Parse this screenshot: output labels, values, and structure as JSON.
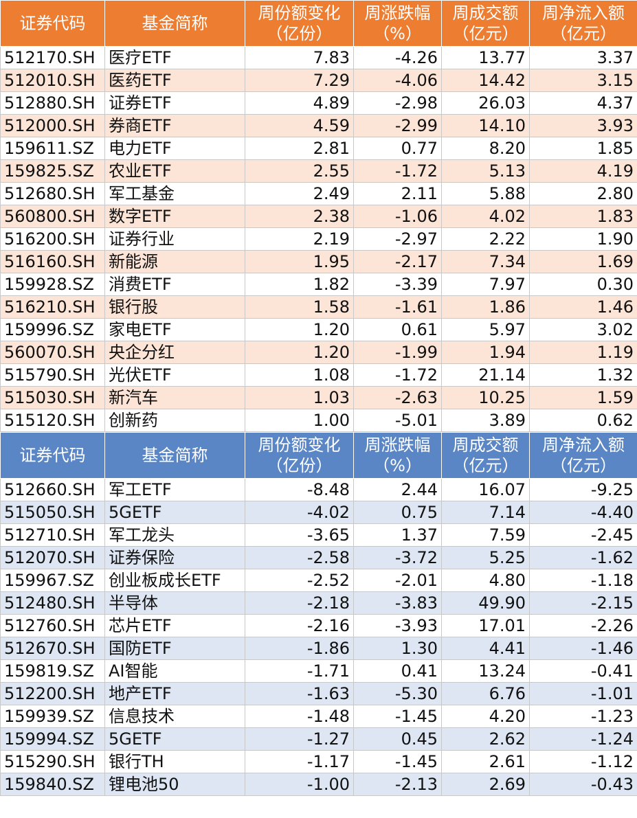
{
  "columns": {
    "code": "证券代码",
    "name": "基金简称",
    "share_change": [
      "周份额变化",
      "（亿份）"
    ],
    "pct_change": [
      "周涨跌幅",
      "（%）"
    ],
    "turnover": [
      "周成交额",
      "（亿元）"
    ],
    "net_inflow": [
      "周净流入额",
      "（亿元）"
    ]
  },
  "colors": {
    "inflow_header": "#ed7d31",
    "inflow_stripe": "#fce4d6",
    "outflow_header": "#5b86c5",
    "outflow_stripe": "#dde6f2"
  },
  "inflow_rows": [
    [
      "512170.SH",
      "医疗ETF",
      "7.83",
      "-4.26",
      "13.77",
      "3.37"
    ],
    [
      "512010.SH",
      "医药ETF",
      "7.29",
      "-4.06",
      "14.42",
      "3.15"
    ],
    [
      "512880.SH",
      "证券ETF",
      "4.89",
      "-2.98",
      "26.03",
      "4.37"
    ],
    [
      "512000.SH",
      "券商ETF",
      "4.59",
      "-2.99",
      "14.10",
      "3.93"
    ],
    [
      "159611.SZ",
      "电力ETF",
      "2.81",
      "0.77",
      "8.20",
      "1.85"
    ],
    [
      "159825.SZ",
      "农业ETF",
      "2.55",
      "-1.72",
      "5.13",
      "4.19"
    ],
    [
      "512680.SH",
      "军工基金",
      "2.49",
      "2.11",
      "5.88",
      "2.80"
    ],
    [
      "560800.SH",
      "数字ETF",
      "2.38",
      "-1.06",
      "4.02",
      "1.83"
    ],
    [
      "516200.SH",
      "证券行业",
      "2.19",
      "-2.97",
      "2.22",
      "1.90"
    ],
    [
      "516160.SH",
      "新能源",
      "1.95",
      "-2.17",
      "7.34",
      "1.69"
    ],
    [
      "159928.SZ",
      "消费ETF",
      "1.82",
      "-3.39",
      "7.97",
      "0.30"
    ],
    [
      "516210.SH",
      "银行股",
      "1.58",
      "-1.61",
      "1.86",
      "1.46"
    ],
    [
      "159996.SZ",
      "家电ETF",
      "1.20",
      "0.61",
      "5.97",
      "3.02"
    ],
    [
      "560070.SH",
      "央企分红",
      "1.20",
      "-1.99",
      "1.94",
      "1.19"
    ],
    [
      "515790.SH",
      "光伏ETF",
      "1.08",
      "-1.72",
      "21.14",
      "1.32"
    ],
    [
      "515030.SH",
      "新汽车",
      "1.03",
      "-2.63",
      "10.25",
      "1.59"
    ],
    [
      "515120.SH",
      "创新药",
      "1.00",
      "-5.01",
      "3.89",
      "0.62"
    ]
  ],
  "outflow_rows": [
    [
      "512660.SH",
      "军工ETF",
      "-8.48",
      "2.44",
      "16.07",
      "-9.25"
    ],
    [
      "515050.SH",
      "5GETF",
      "-4.02",
      "0.75",
      "7.14",
      "-4.40"
    ],
    [
      "512710.SH",
      "军工龙头",
      "-3.65",
      "1.37",
      "7.59",
      "-2.45"
    ],
    [
      "512070.SH",
      "证券保险",
      "-2.58",
      "-3.72",
      "5.25",
      "-1.62"
    ],
    [
      "159967.SZ",
      "创业板成长ETF",
      "-2.52",
      "-2.01",
      "4.80",
      "-1.18"
    ],
    [
      "512480.SH",
      "半导体",
      "-2.18",
      "-3.83",
      "49.90",
      "-2.15"
    ],
    [
      "512760.SH",
      "芯片ETF",
      "-2.16",
      "-3.93",
      "17.01",
      "-2.26"
    ],
    [
      "512670.SH",
      "国防ETF",
      "-1.86",
      "1.30",
      "4.41",
      "-1.46"
    ],
    [
      "159819.SZ",
      "AI智能",
      "-1.71",
      "0.41",
      "13.24",
      "-0.41"
    ],
    [
      "512200.SH",
      "地产ETF",
      "-1.63",
      "-5.30",
      "6.76",
      "-1.01"
    ],
    [
      "159939.SZ",
      "信息技术",
      "-1.48",
      "-1.45",
      "4.20",
      "-1.23"
    ],
    [
      "159994.SZ",
      "5GETF",
      "-1.27",
      "0.45",
      "2.62",
      "-1.24"
    ],
    [
      "515290.SH",
      "银行TH",
      "-1.17",
      "-1.45",
      "2.61",
      "-1.12"
    ],
    [
      "159840.SZ",
      "锂电池50",
      "-1.00",
      "-2.13",
      "2.69",
      "-0.43"
    ]
  ]
}
